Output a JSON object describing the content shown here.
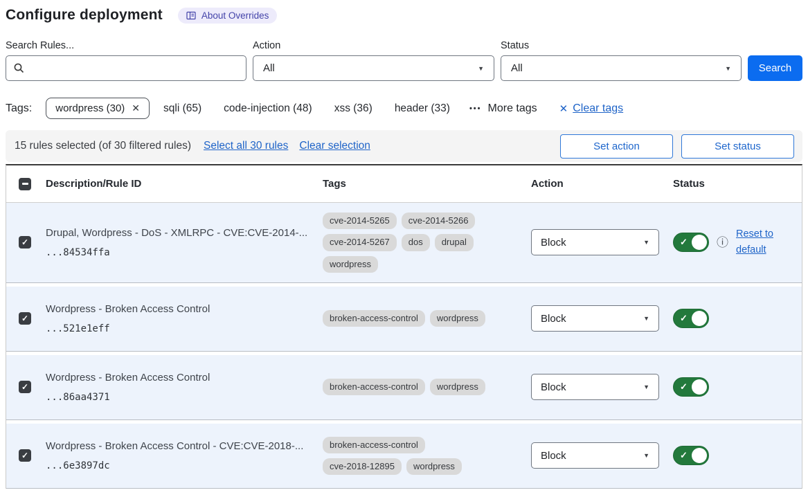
{
  "page": {
    "title": "Configure deployment",
    "about_badge": "About Overrides"
  },
  "filters": {
    "search_label": "Search Rules...",
    "search_value": "",
    "action_label": "Action",
    "action_value": "All",
    "status_label": "Status",
    "status_value": "All",
    "search_button": "Search"
  },
  "tags_bar": {
    "label": "Tags:",
    "selected_tag": "wordpress (30)",
    "tags": [
      "sqli (65)",
      "code-injection (48)",
      "xss (36)",
      "header (33)"
    ],
    "more_tags": "More tags",
    "clear_tags": "Clear tags"
  },
  "selection_bar": {
    "summary": "15 rules selected (of 30 filtered rules)",
    "select_all": "Select all 30 rules",
    "clear_selection": "Clear selection",
    "set_action": "Set action",
    "set_status": "Set status"
  },
  "table": {
    "headers": {
      "description": "Description/Rule ID",
      "tags": "Tags",
      "action": "Action",
      "status": "Status"
    },
    "rows": [
      {
        "description": "Drupal, Wordpress - DoS - XMLRPC - CVE:CVE-2014-...",
        "rule_id": "...84534ffa",
        "tags": [
          "cve-2014-5265",
          "cve-2014-5266",
          "cve-2014-5267",
          "dos",
          "drupal",
          "wordpress"
        ],
        "action": "Block",
        "enabled": true,
        "checked": true,
        "has_reset": true,
        "reset_label": "Reset to default"
      },
      {
        "description": "Wordpress - Broken Access Control",
        "rule_id": "...521e1eff",
        "tags": [
          "broken-access-control",
          "wordpress"
        ],
        "action": "Block",
        "enabled": true,
        "checked": true,
        "has_reset": false,
        "reset_label": ""
      },
      {
        "description": "Wordpress - Broken Access Control",
        "rule_id": "...86aa4371",
        "tags": [
          "broken-access-control",
          "wordpress"
        ],
        "action": "Block",
        "enabled": true,
        "checked": true,
        "has_reset": false,
        "reset_label": ""
      },
      {
        "description": "Wordpress - Broken Access Control - CVE:CVE-2018-...",
        "rule_id": "...6e3897dc",
        "tags": [
          "broken-access-control",
          "cve-2018-12895",
          "wordpress"
        ],
        "action": "Block",
        "enabled": true,
        "checked": true,
        "has_reset": false,
        "reset_label": ""
      }
    ]
  },
  "colors": {
    "accent_blue": "#0b6cf0",
    "link_blue": "#1f64c8",
    "toggle_green": "#23793c",
    "row_selected_bg": "#edf3fc",
    "badge_purple_bg": "#edebfb",
    "badge_purple_text": "#4343a9",
    "pill_gray": "#d9d9d9",
    "checkbox_dark": "#3a3d42"
  }
}
